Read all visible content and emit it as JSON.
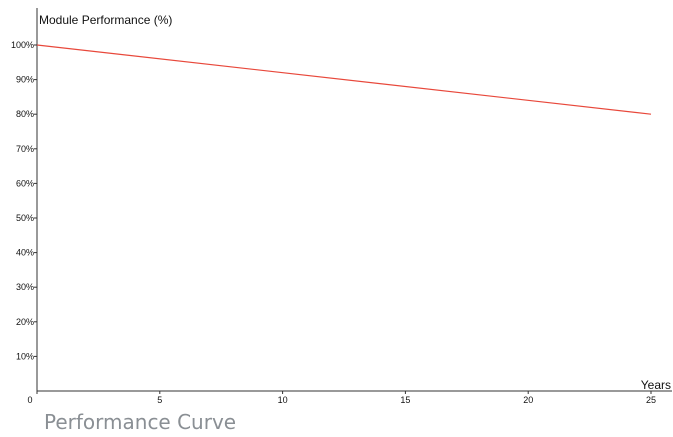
{
  "chart_data": {
    "type": "line",
    "ylabel": "Module Performance (%)",
    "xlabel": "Years",
    "x_ticks": [
      0,
      5,
      10,
      15,
      20,
      25
    ],
    "y_ticks": [
      10,
      20,
      30,
      40,
      50,
      60,
      70,
      80,
      90,
      100
    ],
    "y_tick_suffix": "%",
    "xlim": [
      0,
      25
    ],
    "ylim": [
      0,
      100
    ],
    "grid": false,
    "series": [
      {
        "color": "#e8483b",
        "points": [
          {
            "x": 0,
            "y": 100
          },
          {
            "x": 25,
            "y": 80
          }
        ]
      }
    ]
  },
  "caption": "Performance Curve"
}
